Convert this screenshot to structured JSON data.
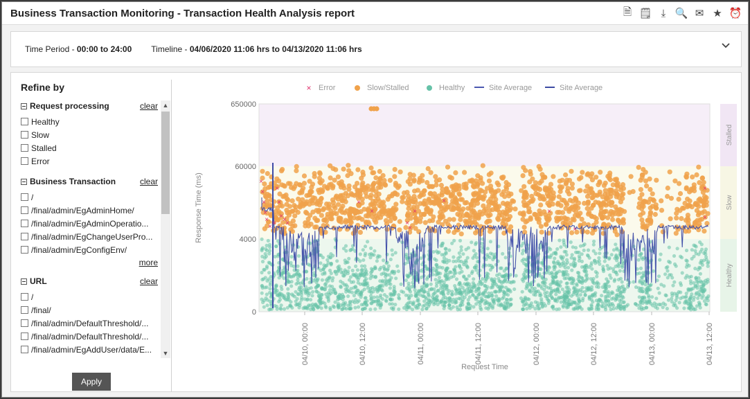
{
  "title": "Business Transaction Monitoring - Transaction Health Analysis report",
  "toolbar": [
    {
      "name": "pdf-report-icon",
      "glyph": "🗎"
    },
    {
      "name": "csv-report-icon",
      "glyph": "🗒"
    },
    {
      "name": "download-report-icon",
      "glyph": "⤓"
    },
    {
      "name": "preview-report-icon",
      "glyph": "🔍"
    },
    {
      "name": "email-icon",
      "glyph": "✉"
    },
    {
      "name": "favorite-star-icon",
      "glyph": "★"
    },
    {
      "name": "alarm-clock-icon",
      "glyph": "⏰"
    }
  ],
  "period": {
    "time_label": "Time Period - ",
    "time_value": "00:00 to 24:00",
    "timeline_label": "Timeline - ",
    "timeline_value": "04/06/2020 11:06 hrs to 04/13/2020 11:06 hrs"
  },
  "refine": {
    "title": "Refine by",
    "apply_label": "Apply",
    "groups": [
      {
        "title": "Request processing",
        "clear": "clear",
        "options": [
          "Healthy",
          "Slow",
          "Stalled",
          "Error"
        ],
        "more": ""
      },
      {
        "title": "Business Transaction",
        "clear": "clear",
        "options": [
          "/",
          "/final/admin/EgAdminHome/",
          "/final/admin/EgAdminOperatio...",
          "/final/admin/EgChangeUserPro...",
          "/final/admin/EgConfigEnv/"
        ],
        "more": "more"
      },
      {
        "title": "URL",
        "clear": "clear",
        "options": [
          "/",
          "/final/",
          "/final/admin/DefaultThreshold/...",
          "/final/admin/DefaultThreshold/...",
          "/final/admin/EgAddUser/data/E..."
        ],
        "more": ""
      }
    ]
  },
  "chart_data": {
    "type": "scatter",
    "xlabel": "Request Time",
    "ylabel": "Response Time (ms)",
    "y_ticks": [
      "0",
      "4000",
      "60000",
      "650000"
    ],
    "x_ticks": [
      "04/10, 00:00",
      "04/10, 12:00",
      "04/11, 00:00",
      "04/11, 12:00",
      "04/12, 00:00",
      "04/12, 12:00",
      "04/13, 00:00",
      "04/13, 12:00"
    ],
    "bands": [
      {
        "label": "Stalled",
        "from": 60000,
        "to": 650000,
        "color": "#f6eef8",
        "tag_color": "#f1e6f4"
      },
      {
        "label": "Slow",
        "from": 4000,
        "to": 60000,
        "color": "#fbfaec",
        "tag_color": "#f7f6e4"
      },
      {
        "label": "Healthy",
        "from": 0,
        "to": 4000,
        "color": "#edf7ee",
        "tag_color": "#e7f4e8"
      }
    ],
    "legend": [
      {
        "name": "Error",
        "marker": "x",
        "color": "#e0336e"
      },
      {
        "name": "Slow/Stalled",
        "marker": "dot",
        "color": "#f0a24b"
      },
      {
        "name": "Healthy",
        "marker": "dot",
        "color": "#66c2a8"
      },
      {
        "name": "Site Average",
        "marker": "line",
        "color": "#4a58b0"
      },
      {
        "name": "Site Average",
        "marker": "line",
        "color": "#3c4aa3"
      }
    ],
    "colors": {
      "error": "#e0336e",
      "slow": "#f0a24b",
      "healthy": "#66c2a8",
      "average": "#3d4ba6"
    }
  }
}
